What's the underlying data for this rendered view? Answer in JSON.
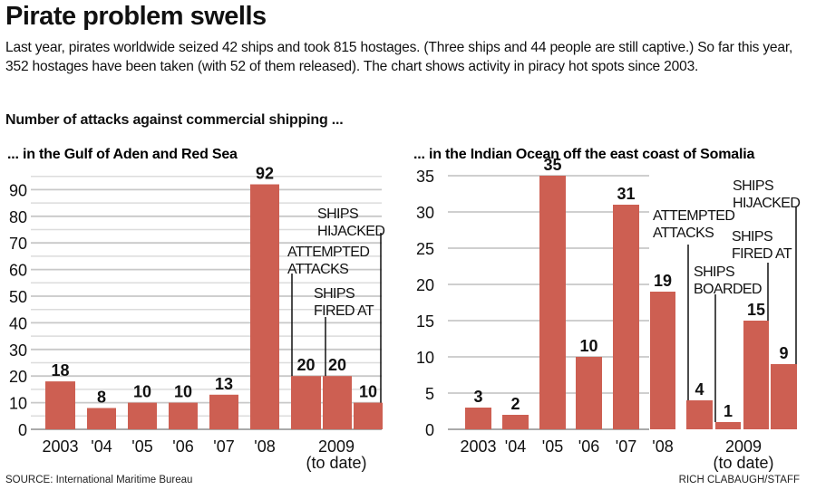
{
  "header": {
    "title": "Pirate problem swells",
    "intro": "Last year, pirates worldwide seized 42 ships and took 815 hostages. (Three ships and 44 people are still captive.) So far this year, 352 hostages have been taken (with 52 of them released). The chart shows activity in piracy hot spots since 2003.",
    "subhead": "Number of attacks against commercial shipping ..."
  },
  "colors": {
    "bar": "#cd5f52",
    "grid": "#c8c8c8",
    "text": "#111111"
  },
  "chart_data": [
    {
      "type": "bar",
      "title": "... in the Gulf of Aden and Red Sea",
      "ylim": [
        0,
        95
      ],
      "yticks": [
        "0",
        "10",
        "20",
        "30",
        "40",
        "50",
        "60",
        "70",
        "80",
        "90"
      ],
      "grid": true,
      "categories": [
        "2003",
        "'04",
        "'05",
        "'06",
        "'07",
        "'08",
        "2009 Attempted attacks",
        "2009 Ships fired at",
        "2009 Ships hijacked"
      ],
      "xlabels": [
        "2003",
        "'04",
        "'05",
        "'06",
        "'07",
        "'08"
      ],
      "group_label": [
        "2009",
        "(to date)"
      ],
      "values": [
        18,
        8,
        10,
        10,
        13,
        92,
        20,
        20,
        10
      ],
      "annotations": [
        {
          "bar": 6,
          "lines": [
            "ATTEMPTED",
            "ATTACKS"
          ]
        },
        {
          "bar": 7,
          "lines": [
            "SHIPS",
            "FIRED AT"
          ]
        },
        {
          "bar": 8,
          "lines": [
            "SHIPS",
            "HIJACKED"
          ]
        }
      ]
    },
    {
      "type": "bar",
      "title": "... in the Indian Ocean off the east coast of Somalia",
      "ylim": [
        0,
        35
      ],
      "yticks": [
        "0",
        "5",
        "10",
        "15",
        "20",
        "25",
        "30",
        "35"
      ],
      "grid": true,
      "categories": [
        "2003",
        "'04",
        "'05",
        "'06",
        "'07",
        "'08",
        "2009 Attempted attacks",
        "2009 Ships boarded",
        "2009 Ships fired at",
        "2009 Ships hijacked"
      ],
      "xlabels": [
        "2003",
        "'04",
        "'05",
        "'06",
        "'07",
        "'08"
      ],
      "group_label": [
        "2009",
        "(to date)"
      ],
      "values": [
        3,
        2,
        35,
        10,
        31,
        19,
        4,
        1,
        15,
        9
      ],
      "annotations": [
        {
          "bar": 6,
          "lines": [
            "ATTEMPTED",
            "ATTACKS"
          ]
        },
        {
          "bar": 7,
          "lines": [
            "SHIPS",
            "BOARDED"
          ]
        },
        {
          "bar": 8,
          "lines": [
            "SHIPS",
            "FIRED AT"
          ]
        },
        {
          "bar": 9,
          "lines": [
            "SHIPS",
            "HIJACKED"
          ]
        }
      ]
    }
  ],
  "footer": {
    "source": "SOURCE: International Maritime Bureau",
    "credit": "RICH CLABAUGH/STAFF"
  }
}
